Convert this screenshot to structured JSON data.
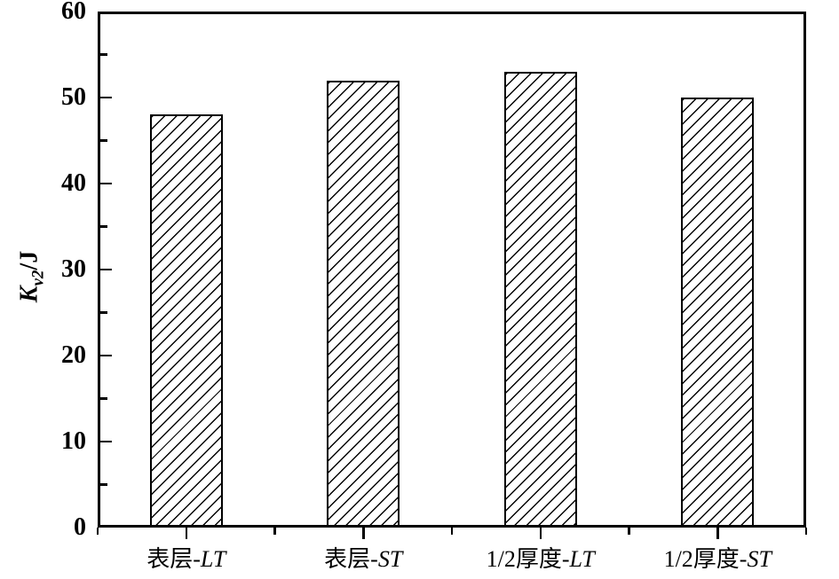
{
  "chart_data": {
    "type": "bar",
    "title": "",
    "ylabel": "Kv2/J",
    "ylabel_parts": {
      "main": "K",
      "sub": "v2",
      "unit": "/J"
    },
    "categories": [
      "表层-LT",
      "表层-ST",
      "1/2厚度-LT",
      "1/2厚度-ST"
    ],
    "categories_rich": [
      {
        "prefix": "表层-",
        "italic": "LT"
      },
      {
        "prefix": "表层-",
        "italic": "ST"
      },
      {
        "prefix": "1/2厚度-",
        "italic": "LT"
      },
      {
        "prefix": "1/2厚度-",
        "italic": "ST"
      }
    ],
    "values": [
      48,
      52,
      53,
      50
    ],
    "ylim": [
      0,
      60
    ],
    "yticks_major": [
      0,
      10,
      20,
      30,
      40,
      50,
      60
    ],
    "yticks_minor": [
      5,
      15,
      25,
      35,
      45,
      55
    ],
    "xlabel": "",
    "grid": false,
    "legend": false,
    "bar_fill": "#ffffff",
    "hatch_style": "forward-diagonal",
    "line_color": "#000000",
    "background_color": "#ffffff"
  }
}
